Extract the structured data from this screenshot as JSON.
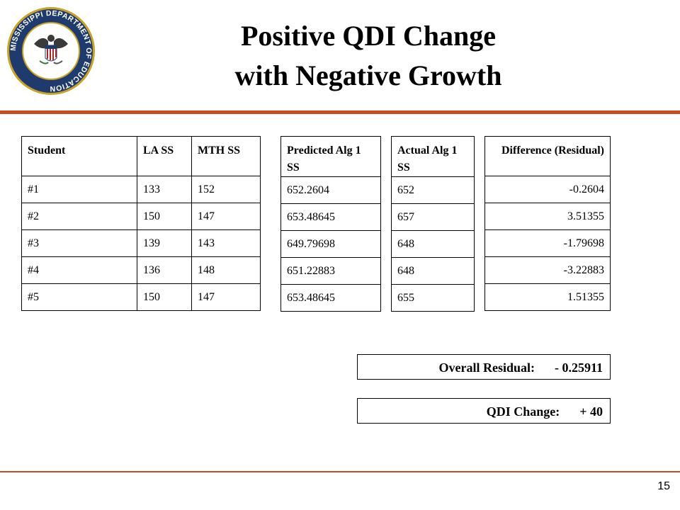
{
  "seal": {
    "text": "MISSISSIPPI DEPARTMENT OF EDUCATION"
  },
  "title": {
    "line1": "Positive QDI Change",
    "line2": "with Negative Growth"
  },
  "page_number": "15",
  "colors": {
    "accent": "#c94a1e",
    "seal_navy": "#1f3b6e",
    "seal_gold": "#c9a227"
  },
  "table_students": {
    "headers": {
      "student": "Student",
      "la": "LA SS",
      "mth": "MTH SS"
    },
    "rows": [
      {
        "student": "#1",
        "la": "133",
        "mth": "152"
      },
      {
        "student": "#2",
        "la": "150",
        "mth": "147"
      },
      {
        "student": "#3",
        "la": "139",
        "mth": "143"
      },
      {
        "student": "#4",
        "la": "136",
        "mth": "148"
      },
      {
        "student": "#5",
        "la": "150",
        "mth": "147"
      }
    ]
  },
  "table_predicted": {
    "header": "Predicted Alg 1 SS",
    "values": [
      "652.2604",
      "653.48645",
      "649.79698",
      "651.22883",
      "653.48645"
    ]
  },
  "table_actual": {
    "header": "Actual Alg 1 SS",
    "values": [
      "652",
      "657",
      "648",
      "648",
      "655"
    ]
  },
  "table_difference": {
    "header": "Difference (Residual)",
    "values": [
      "-0.2604",
      "3.51355",
      "-1.79698",
      "-3.22883",
      "1.51355"
    ]
  },
  "overall_residual": {
    "label": "Overall Residual:",
    "value": "- 0.25911"
  },
  "qdi_change": {
    "label": "QDI Change:",
    "value": "+ 40"
  }
}
